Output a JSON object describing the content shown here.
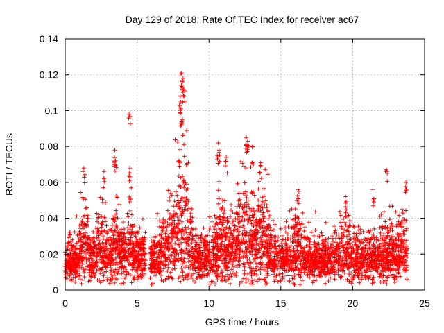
{
  "chart_data": {
    "type": "scatter",
    "title": "Day 129 of 2018, Rate Of TEC Index for receiver ac67",
    "xlabel": "GPS time / hours",
    "ylabel": "ROTI / TECUs",
    "xlim": [
      0,
      25
    ],
    "ylim": [
      0,
      0.14
    ],
    "xticks": [
      0,
      5,
      10,
      15,
      20,
      25
    ],
    "xtick_labels": [
      "0",
      "5",
      "10",
      "15",
      "20",
      "25"
    ],
    "yticks": [
      0,
      0.02,
      0.04,
      0.06,
      0.08,
      0.1,
      0.12,
      0.14
    ],
    "ytick_labels": [
      "0",
      "0.02",
      "0.04",
      "0.06",
      "0.08",
      "0.1",
      "0.12",
      "0.14"
    ],
    "grid": true,
    "marker": "+",
    "series": [
      {
        "name": "ROTI",
        "color": "#ff0000",
        "x_range": [
          0,
          23.8
        ],
        "gap": [
          5.6,
          5.9
        ],
        "baseline_mean": 0.016,
        "notable_points": [
          [
            4.45,
            0.098
          ],
          [
            8.1,
            0.121
          ],
          [
            8.2,
            0.118
          ],
          [
            8.25,
            0.112
          ],
          [
            8.0,
            0.108
          ],
          [
            8.05,
            0.101
          ],
          [
            8.15,
            0.095
          ],
          [
            3.45,
            0.078
          ],
          [
            3.5,
            0.072
          ],
          [
            4.5,
            0.068
          ],
          [
            1.3,
            0.068
          ],
          [
            2.7,
            0.066
          ],
          [
            12.6,
            0.085
          ],
          [
            12.7,
            0.083
          ],
          [
            13.05,
            0.08
          ],
          [
            10.65,
            0.082
          ],
          [
            10.7,
            0.078
          ],
          [
            11.2,
            0.074
          ],
          [
            22.35,
            0.067
          ],
          [
            21.4,
            0.056
          ],
          [
            23.7,
            0.06
          ],
          [
            19.5,
            0.052
          ],
          [
            13.6,
            0.071
          ],
          [
            16.2,
            0.056
          ]
        ]
      }
    ]
  }
}
